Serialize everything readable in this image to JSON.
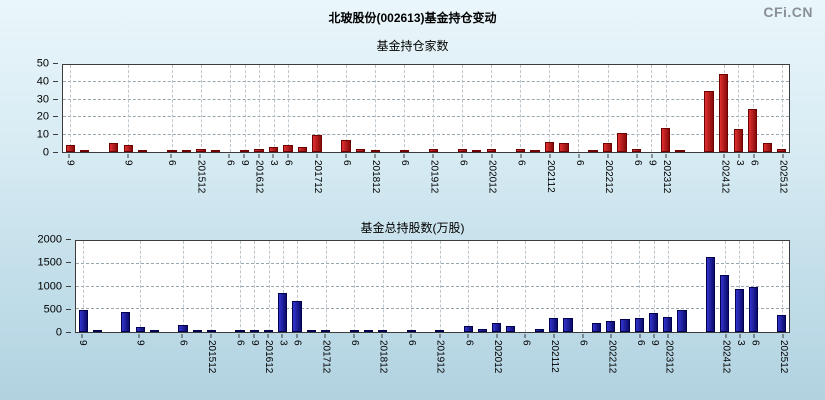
{
  "page": {
    "title": "北玻股份(002613)基金持仓变动",
    "logo": "CFi.CN",
    "background_top": "#eaf6fb",
    "background_bottom": "#b2d2e0"
  },
  "chart_data": [
    {
      "type": "bar",
      "title": "基金持仓家数",
      "xlabel": "",
      "ylabel": "",
      "ylim": [
        0,
        50
      ],
      "yticks": [
        0,
        10,
        20,
        30,
        40,
        50
      ],
      "grid": "dashed",
      "legend": "none",
      "bar_color": "#e03030",
      "bar_border": "#6e0000",
      "categories": [
        "9",
        "",
        "",
        "",
        "9",
        "",
        "",
        "6",
        "",
        "201512",
        "",
        "6",
        "9",
        "201612",
        "3",
        "6",
        "",
        "201712",
        "",
        "6",
        "",
        "201812",
        "",
        "6",
        "",
        "201912",
        "",
        "6",
        "",
        "202012",
        "",
        "6",
        "",
        "202112",
        "",
        "6",
        "",
        "202212",
        "",
        "6",
        "9",
        "202312",
        "",
        "",
        "",
        "202412",
        "3",
        "6",
        "",
        "202512"
      ],
      "values": [
        4,
        1,
        0,
        5,
        4,
        1,
        0,
        1,
        1,
        2,
        1,
        0,
        1,
        2,
        3,
        4,
        3,
        10,
        0,
        7,
        2,
        1,
        0,
        1,
        0,
        2,
        0,
        2,
        1,
        2,
        0,
        2,
        1,
        6,
        5,
        0,
        1,
        5,
        11,
        2,
        0,
        14,
        1,
        0,
        35,
        45,
        13,
        25,
        5,
        2
      ]
    },
    {
      "type": "bar",
      "title": "基金总持股数(万股)",
      "xlabel": "",
      "ylabel": "",
      "ylim": [
        0,
        2000
      ],
      "yticks": [
        0,
        500,
        1000,
        1500,
        2000
      ],
      "grid": "dashed",
      "legend": "none",
      "bar_color": "#3434cf",
      "bar_border": "#00004e",
      "categories": [
        "9",
        "",
        "",
        "",
        "9",
        "",
        "",
        "6",
        "",
        "201512",
        "",
        "6",
        "9",
        "201612",
        "3",
        "6",
        "",
        "201712",
        "",
        "6",
        "",
        "201812",
        "",
        "6",
        "",
        "201912",
        "",
        "6",
        "",
        "202012",
        "",
        "6",
        "",
        "202112",
        "",
        "6",
        "",
        "202212",
        "",
        "6",
        "9",
        "202312",
        "",
        "",
        "",
        "202412",
        "3",
        "6",
        "",
        "202512"
      ],
      "values": [
        480,
        50,
        0,
        450,
        100,
        30,
        0,
        160,
        20,
        30,
        0,
        20,
        20,
        30,
        850,
        680,
        30,
        50,
        0,
        30,
        20,
        30,
        0,
        20,
        0,
        30,
        0,
        130,
        60,
        200,
        130,
        0,
        60,
        300,
        310,
        0,
        200,
        250,
        280,
        300,
        420,
        330,
        480,
        0,
        1650,
        1250,
        950,
        1000,
        0,
        380
      ]
    }
  ]
}
